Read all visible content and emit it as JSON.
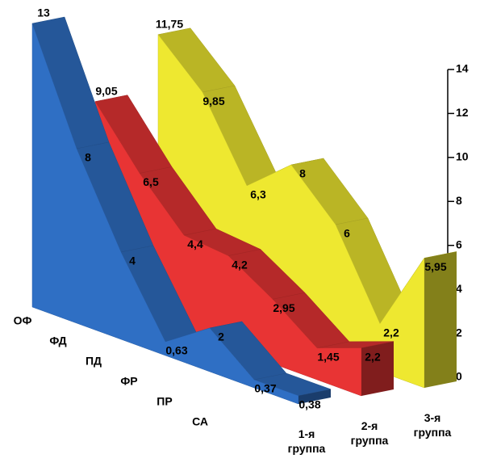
{
  "chart_data": {
    "type": "area3d",
    "categories": [
      "ОФ",
      "ФД",
      "ПД",
      "ФР",
      "ПР",
      "СА",
      null
    ],
    "series": [
      {
        "name": "1-я группа",
        "color": "#2f6fc4",
        "values": [
          13,
          8,
          4,
          0.63,
          2,
          0.37,
          0.38
        ],
        "value_labels": [
          "13",
          "8",
          "4",
          "0,63",
          "2",
          "0,37",
          "0,38"
        ]
      },
      {
        "name": "2-я группа",
        "color": "#e83434",
        "values": [
          9.05,
          6.5,
          4.4,
          4.2,
          2.95,
          1.45,
          2.2
        ],
        "value_labels": [
          "9,05",
          "6,5",
          "4,4",
          "4,2",
          "2,95",
          "1,45",
          "2,2"
        ]
      },
      {
        "name": "3-я группа",
        "color": "#eee830",
        "values": [
          11.75,
          9.85,
          6.3,
          8,
          6,
          2.2,
          5.95
        ],
        "value_labels": [
          "11,75",
          "9,85",
          "6,3",
          "8",
          "6",
          "2,2",
          "5,95"
        ]
      }
    ],
    "ylim": [
      0,
      14
    ],
    "yticks": [
      0,
      2,
      4,
      6,
      8,
      10,
      12,
      14
    ]
  }
}
